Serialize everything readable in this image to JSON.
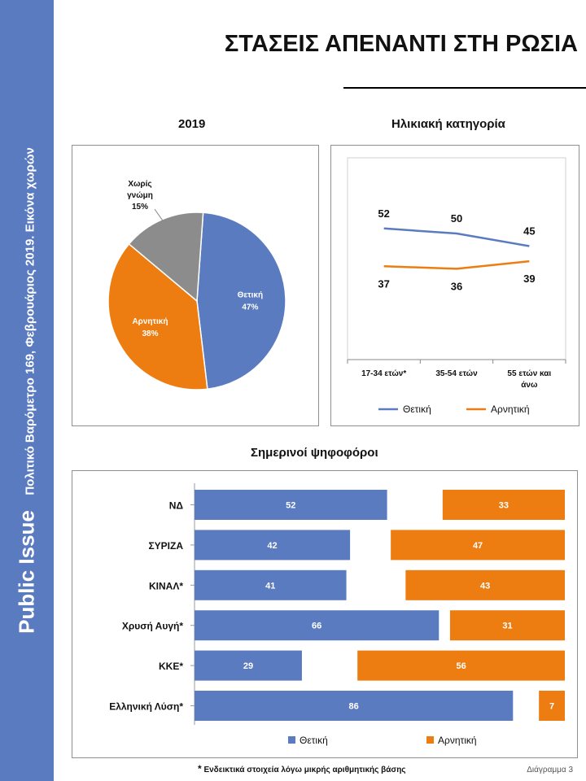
{
  "sidebar": {
    "brand": "Public Issue",
    "subtitle": "Πολιτικό Βαρόμετρο 169, Φεβρουάριος 2019. Εικόνα χωρών"
  },
  "page": {
    "title": "ΣΤΑΣΕΙΣ ΑΠΕΝΑΝΤΙ ΣΤΗ ΡΩΣΙΑ"
  },
  "sections": {
    "pie_title": "2019",
    "line_title": "Ηλικιακή κατηγορία",
    "bar_title": "Σημερινοί ψηφοφόροι"
  },
  "footer": {
    "note_marker": "*",
    "note": "Ενδεικτικά στοιχεία λόγω μικρής αριθμητικής βάσης",
    "diagram": "Διάγραμμα 3"
  },
  "chart_data": [
    {
      "type": "pie",
      "title": "2019",
      "slices": [
        {
          "label": "Θετική",
          "value": 47,
          "value_label": "47%",
          "color": "#5b7bc0"
        },
        {
          "label": "Αρνητική",
          "value": 38,
          "value_label": "38%",
          "color": "#ed7d11"
        },
        {
          "label": "Χωρίς γνώμη",
          "label_lines": [
            "Χωρίς",
            "γνώμη"
          ],
          "value": 15,
          "value_label": "15%",
          "color": "#8c8c8c"
        }
      ]
    },
    {
      "type": "line",
      "title": "Ηλικιακή κατηγορία",
      "categories": [
        "17-34 ετών*",
        "35-54 ετών",
        "55 ετών και άνω"
      ],
      "category_lines": [
        [
          "17-34 ετών*"
        ],
        [
          "35-54 ετών"
        ],
        [
          "55 ετών και",
          "άνω"
        ]
      ],
      "series": [
        {
          "name": "Θετική",
          "values": [
            52,
            50,
            45
          ],
          "color": "#5b7bc0"
        },
        {
          "name": "Αρνητική",
          "values": [
            37,
            36,
            39
          ],
          "color": "#ed7d11"
        }
      ],
      "legend_position": "bottom"
    },
    {
      "type": "bar",
      "title": "Σημερινοί ψηφοφόροι",
      "orientation": "horizontal",
      "categories": [
        "ΝΔ",
        "ΣΥΡΙΖΑ",
        "ΚΙΝΑΛ*",
        "Χρυσή Αυγή*",
        "ΚΚΕ*",
        "Ελληνική Λύση*"
      ],
      "series": [
        {
          "name": "Θετική",
          "values": [
            52,
            42,
            41,
            66,
            29,
            86
          ],
          "color": "#5b7bc0"
        },
        {
          "name": "Αρνητική",
          "values": [
            33,
            47,
            43,
            31,
            56,
            7
          ],
          "color": "#ed7d11"
        }
      ],
      "legend_position": "bottom"
    }
  ]
}
